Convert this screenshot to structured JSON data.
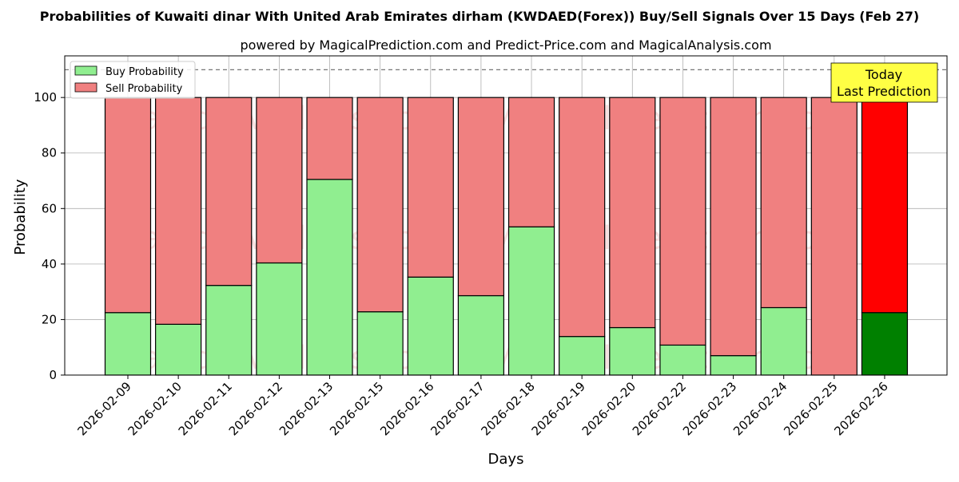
{
  "title": "Probabilities of Kuwaiti dinar With United Arab Emirates dirham (KWDAED(Forex)) Buy/Sell Signals Over 15 Days (Feb 27)",
  "subtitle": "powered by MagicalPrediction.com and Predict-Price.com and MagicalAnalysis.com",
  "watermarks": [
    "MagicalAnalysis.com",
    "MagicalPrediction.com"
  ],
  "annotation": {
    "line1": "Today",
    "line2": "Last Prediction"
  },
  "colors": {
    "buy": "#90ee90",
    "sell": "#f08080",
    "today_buy": "#008000",
    "today_sell": "#ff0000",
    "annotation_bg": "#ffff44"
  },
  "chart_data": {
    "type": "bar",
    "stacked": true,
    "xlabel": "Days",
    "ylabel": "Probability",
    "ylim": [
      0,
      115
    ],
    "yticks": [
      0,
      20,
      40,
      60,
      80,
      100
    ],
    "grid": true,
    "legend_position": "top-left",
    "reference_line": 110,
    "categories": [
      "2026-02-09",
      "2026-02-10",
      "2026-02-11",
      "2026-02-12",
      "2026-02-13",
      "2026-02-15",
      "2026-02-16",
      "2026-02-17",
      "2026-02-18",
      "2026-02-19",
      "2026-02-20",
      "2026-02-22",
      "2026-02-23",
      "2026-02-24",
      "2026-02-25",
      "2026-02-26"
    ],
    "series": [
      {
        "name": "Buy Probability",
        "values": [
          22.5,
          18.3,
          32.3,
          40.4,
          70.5,
          22.8,
          35.3,
          28.6,
          53.4,
          13.9,
          17.1,
          10.8,
          7.0,
          24.3,
          0,
          22.5
        ]
      },
      {
        "name": "Sell Probability",
        "values": [
          77.5,
          81.7,
          67.7,
          59.6,
          29.5,
          77.2,
          64.7,
          71.4,
          46.6,
          86.1,
          82.9,
          89.2,
          93.0,
          75.7,
          100,
          77.5
        ]
      }
    ]
  }
}
